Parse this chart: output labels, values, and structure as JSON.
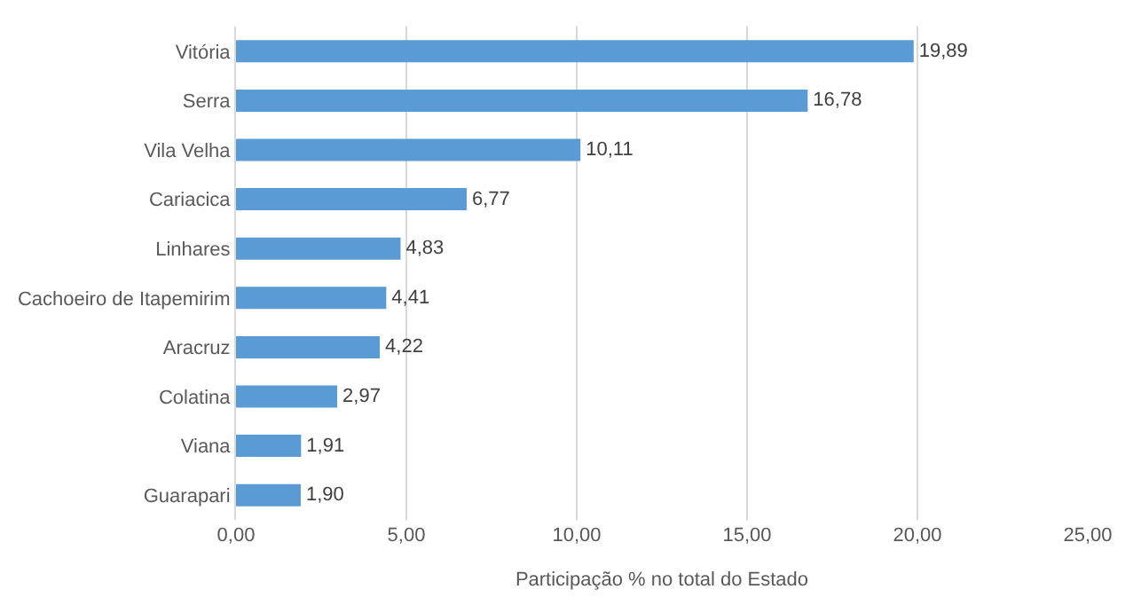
{
  "chart_data": {
    "type": "bar",
    "orientation": "horizontal",
    "xlabel": "Participação % no total do Estado",
    "categories": [
      "Vitória",
      "Serra",
      "Vila Velha",
      "Cariacica",
      "Linhares",
      "Cachoeiro de Itapemirim",
      "Aracruz",
      "Colatina",
      "Viana",
      "Guarapari"
    ],
    "values": [
      19.89,
      16.78,
      10.11,
      6.77,
      4.83,
      4.41,
      4.22,
      2.97,
      1.91,
      1.9
    ],
    "value_labels": [
      "19,89",
      "16,78",
      "10,11",
      "6,77",
      "4,83",
      "4,41",
      "4,22",
      "2,97",
      "1,91",
      "1,90"
    ],
    "color": "#5b9bd5",
    "xlim": [
      0,
      25
    ],
    "xticks": [
      {
        "value": 0,
        "label": "0,00"
      },
      {
        "value": 5,
        "label": "5,00"
      },
      {
        "value": 10,
        "label": "10,00"
      },
      {
        "value": 15,
        "label": "15,00"
      },
      {
        "value": 20,
        "label": "20,00"
      },
      {
        "value": 25,
        "label": "25,00"
      }
    ],
    "grid": "x"
  }
}
